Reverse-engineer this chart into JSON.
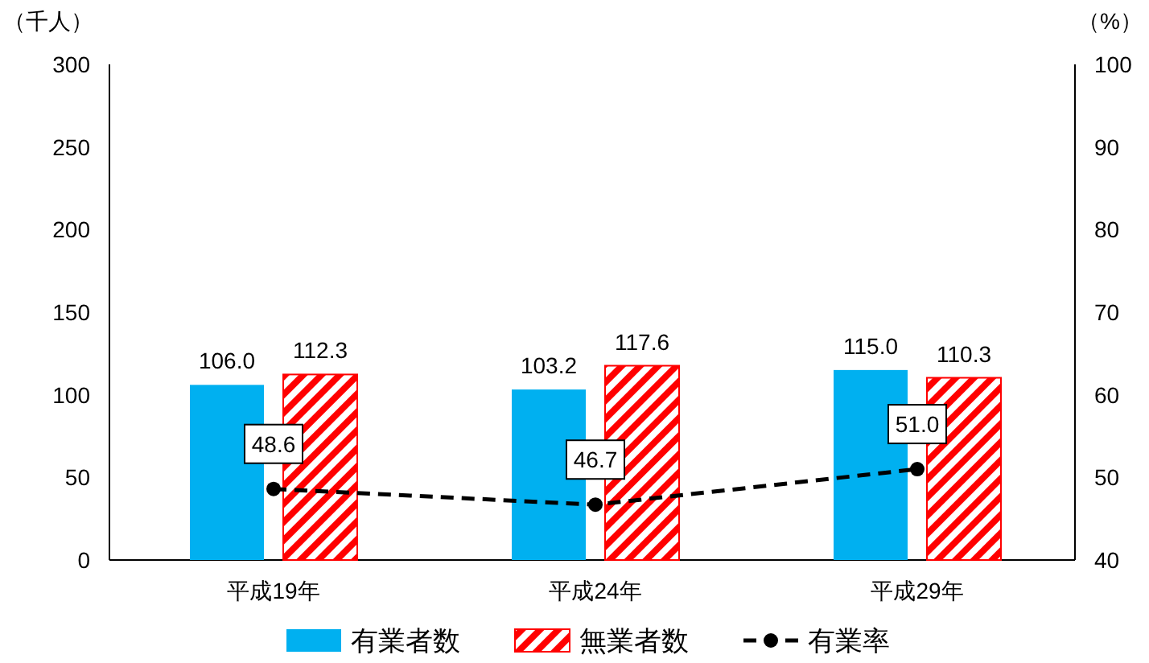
{
  "chart_data": {
    "type": "bar",
    "categories": [
      "平成19年",
      "平成24年",
      "平成29年"
    ],
    "ylabel": "（千人）",
    "y2label": "（%）",
    "ylim": [
      0,
      300
    ],
    "yticks": [
      0,
      50,
      100,
      150,
      200,
      250,
      300
    ],
    "y2lim": [
      40,
      100
    ],
    "y2ticks": [
      40,
      50,
      60,
      70,
      80,
      90,
      100
    ],
    "legend": "bottom",
    "series": [
      {
        "name": "有業者数",
        "color": "#00b0f0",
        "values": [
          106.0,
          103.2,
          115.0
        ],
        "value_labels": [
          "106.0",
          "103.2",
          "115.0"
        ]
      },
      {
        "name": "無業者数",
        "color": "#ff0000",
        "values": [
          112.3,
          117.6,
          110.3
        ],
        "value_labels": [
          "112.3",
          "117.6",
          "110.3"
        ]
      },
      {
        "name": "有業率",
        "type": "line",
        "axis": "y2",
        "color": "#000000",
        "marker": "circle",
        "line_style": "dashed",
        "values": [
          48.6,
          46.7,
          51.0
        ],
        "value_labels": [
          "48.6",
          "46.7",
          "51.0"
        ]
      }
    ]
  }
}
